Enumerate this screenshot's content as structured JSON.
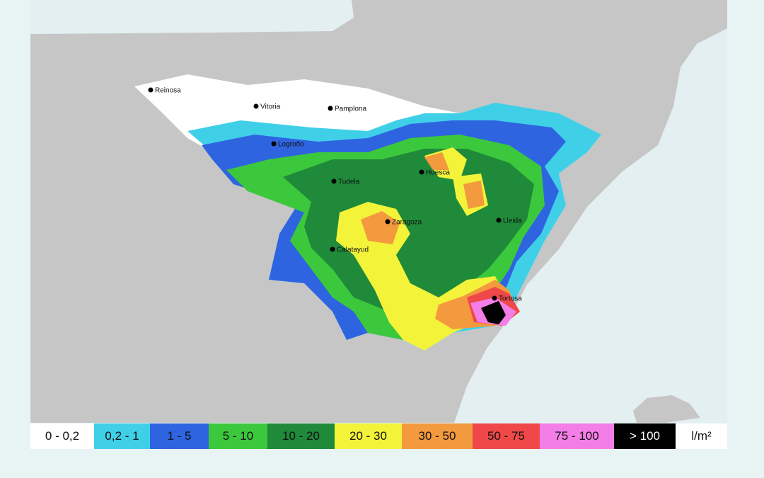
{
  "cities": [
    "Reinosa",
    "Vitoria",
    "Pamplona",
    "Logroño",
    "Tudela",
    "Huesca",
    "Zaragoza",
    "Lleida",
    "Calatayud",
    "Tortosa"
  ],
  "legend": {
    "items": [
      {
        "label": "0 - 0,2",
        "color": "#ffffff"
      },
      {
        "label": "0,2 - 1",
        "color": "#3fd0e8"
      },
      {
        "label": "1 - 5",
        "color": "#2f64e0"
      },
      {
        "label": "5 - 10",
        "color": "#3cc83c"
      },
      {
        "label": "10 - 20",
        "color": "#1f8a3a"
      },
      {
        "label": "20 - 30",
        "color": "#f3f33a"
      },
      {
        "label": "30 - 50",
        "color": "#f39a3e"
      },
      {
        "label": "50 - 75",
        "color": "#f04848"
      },
      {
        "label": "75 - 100",
        "color": "#f47ee8"
      },
      {
        "label": "> 100",
        "color": "#000000"
      }
    ],
    "unit": "l/m²"
  }
}
